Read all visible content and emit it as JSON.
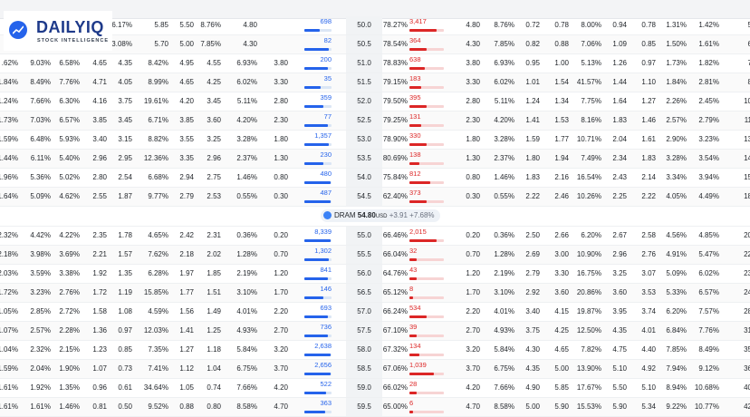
{
  "brand": {
    "name": "DAILYIQ",
    "tagline": "STOCK INTELLIGENCE"
  },
  "colors": {
    "call_volume": "#2563eb",
    "put_volume": "#dc2626"
  },
  "underlying": {
    "symbol": "DRAM",
    "price": "54.80",
    "currency": "USD",
    "change": "+3.91",
    "change_pct": "+7.68%"
  },
  "rows_above": [
    {
      "c": [
        "",
        "",
        "",
        "5.05",
        "6.17%",
        "5.85",
        "5.50",
        "8.76%",
        "4.80"
      ],
      "call_vol": "698",
      "call_frac": 0.55,
      "strike": "50.0",
      "pct": "78.27%",
      "put_vol": "3,417",
      "put_frac": 0.8,
      "p": [
        "4.80",
        "8.76%",
        "0.72",
        "0.78",
        "8.00%",
        "0.94",
        "0.78",
        "1.31%",
        "1.42%",
        "5"
      ]
    },
    {
      "c": [
        "",
        "",
        "",
        "4.70",
        "13.08%",
        "5.70",
        "5.00",
        "7.85%",
        "4.30"
      ],
      "call_vol": "82",
      "call_frac": 0.9,
      "strike": "50.5",
      "pct": "78.54%",
      "put_vol": "364",
      "put_frac": 0.5,
      "p": [
        "4.30",
        "7.85%",
        "0.82",
        "0.88",
        "7.06%",
        "1.09",
        "0.85",
        "1.50%",
        "1.61%",
        "6"
      ]
    },
    {
      "c": ".62%|9.03%|6.58%|4.65|4.35|8.42%|4.95|4.55|6.93%|3.80",
      "call_vol": "200",
      "call_frac": 0.85,
      "strike": "51.0",
      "pct": "78.83%",
      "put_vol": "638",
      "put_frac": 0.45,
      "p": [
        "3.80",
        "6.93%",
        "0.95",
        "1.00",
        "5.13%",
        "1.26",
        "0.97",
        "1.73%",
        "1.82%",
        "7"
      ]
    },
    {
      "c": "1.84%|8.49%|7.76%|4.71|4.05|8.99%|4.65|4.25|6.02%|3.30",
      "call_vol": "35",
      "call_frac": 0.6,
      "strike": "51.5",
      "pct": "79.15%",
      "put_vol": "183",
      "put_frac": 0.35,
      "p": [
        "3.30",
        "6.02%",
        "1.01",
        "1.54",
        "41.57%",
        "1.44",
        "1.10",
        "1.84%",
        "2.81%",
        "8"
      ]
    },
    {
      "c": "1.24%|7.66%|6.30%|4.16|3.75|19.61%|4.20|3.45|5.11%|2.80",
      "call_vol": "359",
      "call_frac": 0.7,
      "strike": "52.0",
      "pct": "79.50%",
      "put_vol": "395",
      "put_frac": 0.5,
      "p": [
        "2.80",
        "5.11%",
        "1.24",
        "1.34",
        "7.75%",
        "1.64",
        "1.27",
        "2.26%",
        "2.45%",
        "10"
      ]
    },
    {
      "c": "1.73%|7.03%|6.57%|3.85|3.45|6.71%|3.85|3.60|4.20%|2.30",
      "call_vol": "77",
      "call_frac": 0.85,
      "strike": "52.5",
      "pct": "79.25%",
      "put_vol": "131",
      "put_frac": 0.35,
      "p": [
        "2.30",
        "4.20%",
        "1.41",
        "1.53",
        "8.16%",
        "1.83",
        "1.46",
        "2.57%",
        "2.79%",
        "11"
      ]
    },
    {
      "c": "1.59%|6.48%|5.93%|3.40|3.15|8.82%|3.55|3.25|3.28%|1.80",
      "call_vol": "1,357",
      "call_frac": 0.9,
      "strike": "53.0",
      "pct": "78.90%",
      "put_vol": "330",
      "put_frac": 0.5,
      "p": [
        "1.80",
        "3.28%",
        "1.59",
        "1.77",
        "10.71%",
        "2.04",
        "1.61",
        "2.90%",
        "3.23%",
        "13"
      ]
    },
    {
      "c": "1.44%|6.11%|5.40%|2.96|2.95|12.36%|3.35|2.96|2.37%|1.30",
      "call_vol": "230",
      "call_frac": 0.7,
      "strike": "53.5",
      "pct": "80.69%",
      "put_vol": "138",
      "put_frac": 0.3,
      "p": [
        "1.30",
        "2.37%",
        "1.80",
        "1.94",
        "7.49%",
        "2.34",
        "1.83",
        "3.28%",
        "3.54%",
        "14"
      ]
    },
    {
      "c": "1.96%|5.36%|5.02%|2.80|2.54|6.68%|2.94|2.75|1.46%|0.80",
      "call_vol": "480",
      "call_frac": 0.95,
      "strike": "54.0",
      "pct": "75.84%",
      "put_vol": "812",
      "put_frac": 0.6,
      "p": [
        "0.80",
        "1.46%",
        "1.83",
        "2.16",
        "16.54%",
        "2.43",
        "2.14",
        "3.34%",
        "3.94%",
        "15"
      ]
    },
    {
      "c": "1.64%|5.09%|4.62%|2.55|1.87|9.77%|2.79|2.53|0.55%|0.30",
      "call_vol": "487",
      "call_frac": 0.95,
      "strike": "54.5",
      "pct": "62.40%",
      "put_vol": "373",
      "put_frac": 0.5,
      "p": [
        "0.30",
        "0.55%",
        "2.22",
        "2.46",
        "10.26%",
        "2.25",
        "2.22",
        "4.05%",
        "4.49%",
        "18"
      ]
    }
  ],
  "rows_below": [
    {
      "c": "2.32%|4.42%|4.22%|2.35|1.78|4.65%|2.42|2.31|0.36%|0.20",
      "call_vol": "8,339",
      "call_frac": 0.95,
      "strike": "55.0",
      "pct": "66.46%",
      "put_vol": "2,015",
      "put_frac": 0.8,
      "p": [
        "0.20",
        "0.36%",
        "2.50",
        "2.66",
        "6.20%",
        "2.67",
        "2.58",
        "4.56%",
        "4.85%",
        "20"
      ]
    },
    {
      "c": "2.18%|3.98%|3.69%|2.21|1.57|7.62%|2.18|2.02|1.28%|0.70",
      "call_vol": "1,302",
      "call_frac": 0.9,
      "strike": "55.5",
      "pct": "66.04%",
      "put_vol": "32",
      "put_frac": 0.2,
      "p": [
        "0.70",
        "1.28%",
        "2.69",
        "3.00",
        "10.90%",
        "2.96",
        "2.76",
        "4.91%",
        "5.47%",
        "22"
      ]
    },
    {
      "c": "2.03%|3.59%|3.38%|1.92|1.35|6.28%|1.97|1.85|2.19%|1.20",
      "call_vol": "841",
      "call_frac": 0.85,
      "strike": "56.0",
      "pct": "64.76%",
      "put_vol": "43",
      "put_frac": 0.2,
      "p": [
        "1.20",
        "2.19%",
        "2.79",
        "3.30",
        "16.75%",
        "3.25",
        "3.07",
        "5.09%",
        "6.02%",
        "23"
      ]
    },
    {
      "c": "1.72%|3.23%|2.76%|1.72|1.19|15.85%|1.77|1.51|3.10%|1.70",
      "call_vol": "146",
      "call_frac": 0.7,
      "strike": "56.5",
      "pct": "65.12%",
      "put_vol": "8",
      "put_frac": 0.1,
      "p": [
        "1.70",
        "3.10%",
        "2.92",
        "3.60",
        "20.86%",
        "3.60",
        "3.53",
        "5.33%",
        "6.57%",
        "24"
      ]
    },
    {
      "c": "1.05%|2.85%|2.72%|1.58|1.08|4.59%|1.56|1.49|4.01%|2.20",
      "call_vol": "693",
      "call_frac": 0.85,
      "strike": "57.0",
      "pct": "66.24%",
      "put_vol": "534",
      "put_frac": 0.5,
      "p": [
        "2.20",
        "4.01%",
        "3.40",
        "4.15",
        "19.87%",
        "3.95",
        "3.74",
        "6.20%",
        "7.57%",
        "28"
      ]
    },
    {
      "c": "1.07%|2.57%|2.28%|1.36|0.97|12.03%|1.41|1.25|4.93%|2.70",
      "call_vol": "736",
      "call_frac": 0.85,
      "strike": "57.5",
      "pct": "67.10%",
      "put_vol": "39",
      "put_frac": 0.2,
      "p": [
        "2.70",
        "4.93%",
        "3.75",
        "4.25",
        "12.50%",
        "4.35",
        "4.01",
        "6.84%",
        "7.76%",
        "31"
      ]
    },
    {
      "c": "1.04%|2.32%|2.15%|1.23|0.85|7.35%|1.27|1.18|5.84%|3.20",
      "call_vol": "2,638",
      "call_frac": 0.95,
      "strike": "58.0",
      "pct": "67.32%",
      "put_vol": "134",
      "put_frac": 0.3,
      "p": [
        "3.20",
        "5.84%",
        "4.30",
        "4.65",
        "7.82%",
        "4.75",
        "4.40",
        "7.85%",
        "8.49%",
        "35"
      ]
    },
    {
      "c": "1.59%|2.04%|1.90%|1.07|0.73|7.41%|1.12|1.04|6.75%|3.70",
      "call_vol": "2,656",
      "call_frac": 0.95,
      "strike": "58.5",
      "pct": "67.06%",
      "put_vol": "1,039",
      "put_frac": 0.7,
      "p": [
        "3.70",
        "6.75%",
        "4.35",
        "5.00",
        "13.90%",
        "5.10",
        "4.92",
        "7.94%",
        "9.12%",
        "36"
      ]
    },
    {
      "c": "1.61%|1.92%|1.35%|0.96|0.61|34.64%|1.05|0.74|7.66%|4.20",
      "call_vol": "522",
      "call_frac": 0.8,
      "strike": "59.0",
      "pct": "66.02%",
      "put_vol": "28",
      "put_frac": 0.2,
      "p": [
        "4.20",
        "7.66%",
        "4.90",
        "5.85",
        "17.67%",
        "5.50",
        "5.10",
        "8.94%",
        "10.68%",
        "40"
      ]
    },
    {
      "c": "1.61%|1.61%|1.46%|0.81|0.50|9.52%|0.88|0.80|8.58%|4.70",
      "call_vol": "363",
      "call_frac": 0.75,
      "strike": "59.5",
      "pct": "65.00%",
      "put_vol": "6",
      "put_frac": 0.1,
      "p": [
        "4.70",
        "8.58%",
        "5.00",
        "5.90",
        "15.53%",
        "5.90",
        "5.34",
        "9.22%",
        "10.77%",
        "42"
      ]
    }
  ]
}
